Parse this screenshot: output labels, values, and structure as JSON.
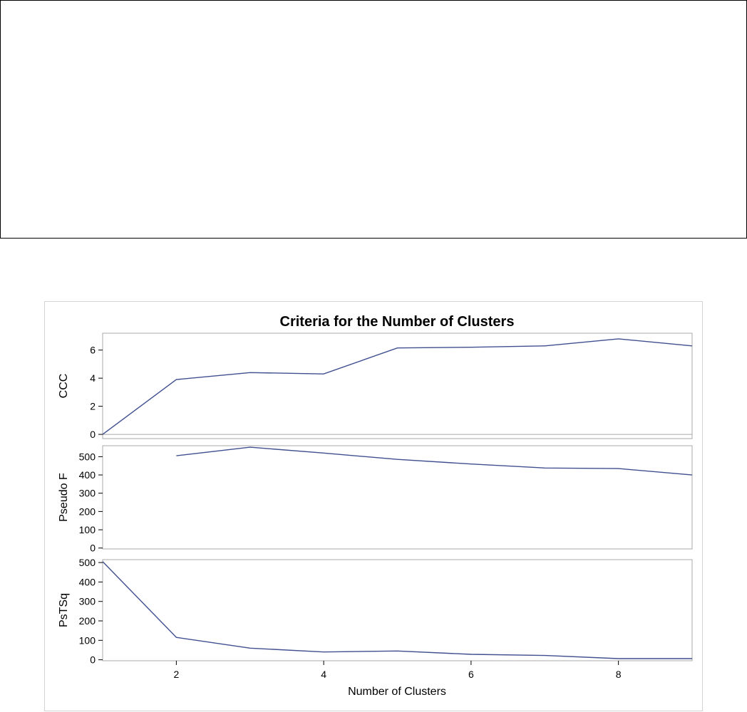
{
  "chart_data": {
    "type": "line",
    "title": "Criteria for the Number of Clusters",
    "xlabel": "Number of Clusters",
    "xlim": [
      1,
      9
    ],
    "xticks": [
      2,
      4,
      6,
      8
    ],
    "colors": {
      "line": "#3f4f8f",
      "frame": "#a8a8a8"
    },
    "panels": [
      {
        "name": "CCC",
        "ylabel": "CCC",
        "ylim": [
          -0.3,
          7.2
        ],
        "yticks": [
          0,
          2,
          4,
          6
        ],
        "reference_line": 0,
        "x": [
          1,
          2,
          3,
          4,
          5,
          6,
          7,
          8,
          9
        ],
        "values": [
          0,
          3.9,
          4.4,
          4.3,
          6.15,
          6.2,
          6.3,
          6.8,
          6.3
        ]
      },
      {
        "name": "Pseudo F",
        "ylabel": "Pseudo F",
        "ylim": [
          -5,
          560
        ],
        "yticks": [
          0,
          100,
          200,
          300,
          400,
          500
        ],
        "x": [
          2,
          3,
          4,
          5,
          6,
          7,
          8,
          9
        ],
        "values": [
          505,
          552,
          520,
          485,
          460,
          438,
          435,
          400
        ]
      },
      {
        "name": "PsTSq",
        "ylabel": "PsTSq",
        "ylim": [
          -5,
          515
        ],
        "yticks": [
          0,
          100,
          200,
          300,
          400,
          500
        ],
        "x": [
          1,
          2,
          3,
          4,
          5,
          6,
          7,
          8,
          9
        ],
        "values": [
          505,
          115,
          60,
          40,
          45,
          28,
          22,
          6,
          6
        ]
      }
    ]
  }
}
